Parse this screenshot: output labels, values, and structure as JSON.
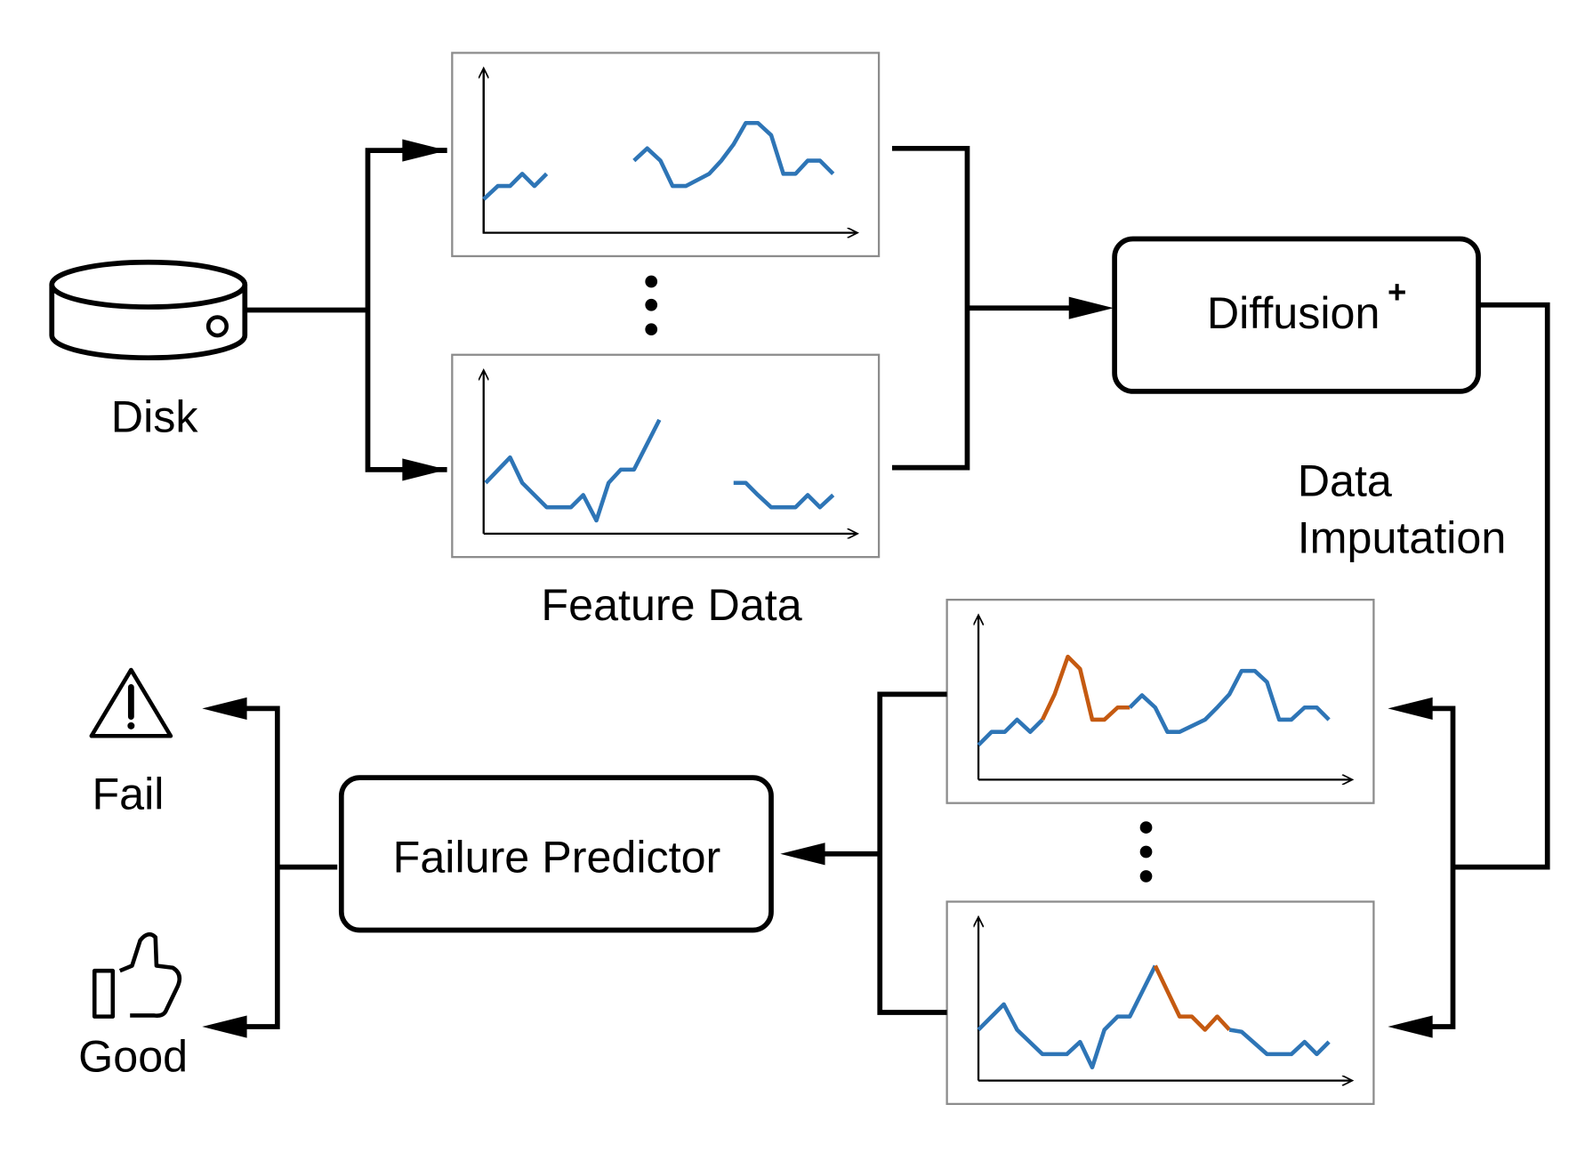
{
  "disk": {
    "label": "Disk"
  },
  "feature_data": {
    "label": "Feature Data"
  },
  "diffusion": {
    "label": "Diffusion",
    "superscript": "+"
  },
  "data_imputation": {
    "lines": [
      "Data",
      "Imputation"
    ]
  },
  "failure_predictor": {
    "label": "Failure Predictor"
  },
  "outputs": {
    "fail": "Fail",
    "good": "Good"
  }
}
